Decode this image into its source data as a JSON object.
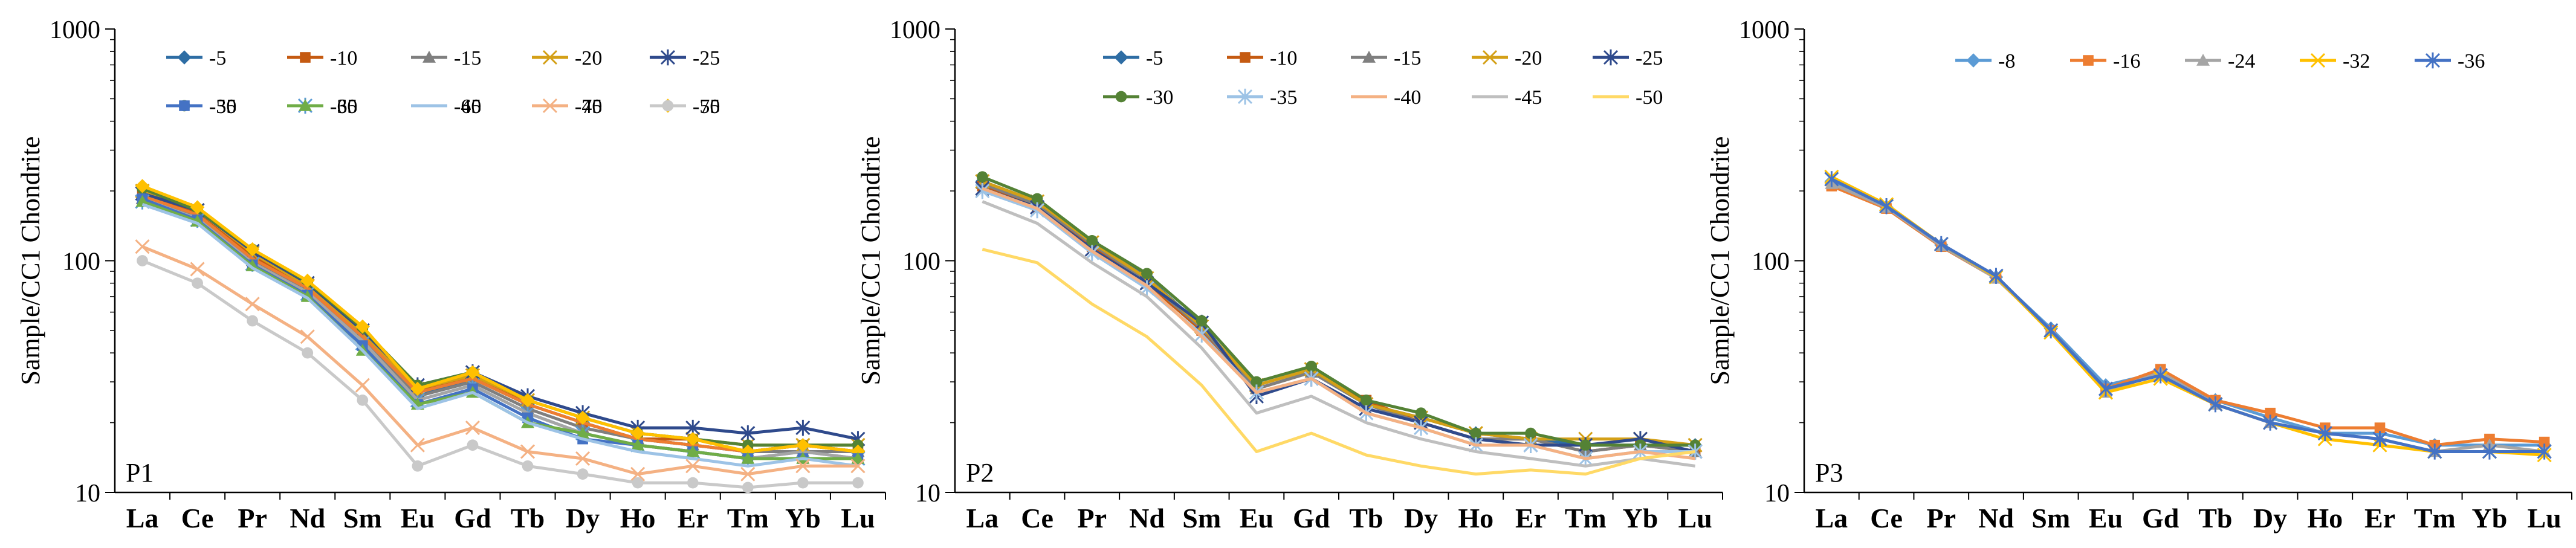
{
  "figure_title": "",
  "chart_data": [
    {
      "type": "line",
      "panel_label": "P1",
      "ylabel": "Sample/CC1 Chondrite",
      "xlabel": "",
      "y_scale": "log",
      "ylim": [
        10,
        1000
      ],
      "y_ticks": [
        "10",
        "100",
        "1000"
      ],
      "categories": [
        "La",
        "Ce",
        "Pr",
        "Nd",
        "Sm",
        "Eu",
        "Gd",
        "Tb",
        "Dy",
        "Ho",
        "Er",
        "Tm",
        "Yb",
        "Lu"
      ],
      "legend_position": "top",
      "grid": false,
      "series": [
        {
          "name": "-5",
          "color": "#2e6da4",
          "marker": "diamond",
          "values": [
            190,
            155,
            100,
            75,
            47,
            26,
            31,
            24,
            20,
            17,
            16,
            15,
            16,
            15
          ]
        },
        {
          "name": "-10",
          "color": "#c55a11",
          "marker": "square",
          "values": [
            195,
            160,
            105,
            77,
            48,
            27,
            32,
            24,
            20,
            17,
            17,
            15,
            16,
            15
          ]
        },
        {
          "name": "-15",
          "color": "#7f7f7f",
          "marker": "triangle",
          "values": [
            185,
            155,
            100,
            74,
            46,
            26,
            30,
            23,
            19,
            17,
            16,
            15,
            15,
            15
          ]
        },
        {
          "name": "-20",
          "color": "#d4a017",
          "marker": "x",
          "values": [
            200,
            165,
            108,
            78,
            49,
            28,
            32,
            25,
            21,
            18,
            17,
            16,
            16,
            16
          ]
        },
        {
          "name": "-25",
          "color": "#2f4a8c",
          "marker": "star",
          "values": [
            195,
            165,
            110,
            80,
            50,
            29,
            33,
            26,
            22,
            19,
            19,
            18,
            19,
            17
          ]
        },
        {
          "name": "-30",
          "color": "#548235",
          "marker": "circle",
          "values": [
            205,
            165,
            112,
            81,
            51,
            29,
            33,
            25,
            21,
            18,
            17,
            16,
            16,
            16
          ]
        },
        {
          "name": "-35",
          "color": "#5b9bd5",
          "marker": "star",
          "values": [
            180,
            150,
            97,
            72,
            44,
            25,
            29,
            22,
            18,
            16,
            15,
            14,
            15,
            14
          ]
        },
        {
          "name": "-40",
          "color": "#ed7d31",
          "marker": "none",
          "values": [
            190,
            158,
            102,
            76,
            47,
            27,
            31,
            24,
            20,
            17,
            16,
            15,
            16,
            15
          ]
        },
        {
          "name": "-45",
          "color": "#a5a5a5",
          "marker": "none",
          "values": [
            185,
            152,
            98,
            73,
            45,
            25,
            29,
            22,
            18,
            16,
            15,
            14,
            15,
            14
          ]
        },
        {
          "name": "-50",
          "color": "#ffc000",
          "marker": "diamond",
          "values": [
            210,
            170,
            112,
            82,
            52,
            28,
            33,
            25,
            21,
            18,
            17,
            15,
            16,
            15
          ]
        },
        {
          "name": "-55",
          "color": "#4472c4",
          "marker": "square",
          "values": [
            185,
            150,
            96,
            71,
            43,
            24,
            28,
            21,
            17,
            16,
            15,
            14,
            14,
            14
          ]
        },
        {
          "name": "-60",
          "color": "#70ad47",
          "marker": "triangle",
          "values": [
            180,
            148,
            95,
            70,
            41,
            24,
            27,
            20,
            18,
            16,
            15,
            14,
            14,
            14
          ]
        },
        {
          "name": "-65",
          "color": "#9dc3e6",
          "marker": "none",
          "values": [
            175,
            145,
            93,
            69,
            41,
            23,
            27,
            20,
            17,
            15,
            14,
            13,
            14,
            13
          ]
        },
        {
          "name": "-70",
          "color": "#f4b183",
          "marker": "x",
          "values": [
            115,
            92,
            65,
            47,
            29,
            16,
            19,
            15,
            14,
            12,
            13,
            12,
            13,
            13
          ]
        },
        {
          "name": "-75",
          "color": "#c9c9c9",
          "marker": "circle",
          "values": [
            100,
            80,
            55,
            40,
            25,
            13,
            16,
            13,
            12,
            11,
            11,
            10.5,
            11,
            11
          ]
        }
      ]
    },
    {
      "type": "line",
      "panel_label": "P2",
      "ylabel": "Sample/CC1 Chondrite",
      "xlabel": "",
      "y_scale": "log",
      "ylim": [
        10,
        1000
      ],
      "y_ticks": [
        "10",
        "100",
        "1000"
      ],
      "categories": [
        "La",
        "Ce",
        "Pr",
        "Nd",
        "Sm",
        "Eu",
        "Gd",
        "Tb",
        "Dy",
        "Ho",
        "Er",
        "Tm",
        "Yb",
        "Lu"
      ],
      "legend_position": "top",
      "grid": false,
      "series": [
        {
          "name": "-5",
          "color": "#2e6da4",
          "marker": "diamond",
          "values": [
            220,
            180,
            120,
            85,
            52,
            29,
            34,
            24,
            21,
            18,
            17,
            16,
            16,
            16
          ]
        },
        {
          "name": "-10",
          "color": "#c55a11",
          "marker": "square",
          "values": [
            210,
            170,
            115,
            80,
            50,
            28,
            33,
            25,
            20,
            17,
            17,
            15,
            16,
            15
          ]
        },
        {
          "name": "-15",
          "color": "#7f7f7f",
          "marker": "triangle",
          "values": [
            215,
            175,
            118,
            82,
            51,
            28,
            33,
            24,
            20,
            17,
            17,
            15,
            16,
            15
          ]
        },
        {
          "name": "-20",
          "color": "#d4a017",
          "marker": "x",
          "values": [
            220,
            180,
            120,
            84,
            52,
            29,
            34,
            24,
            21,
            18,
            17,
            17,
            17,
            16
          ]
        },
        {
          "name": "-25",
          "color": "#2f4a8c",
          "marker": "star",
          "values": [
            205,
            170,
            112,
            80,
            54,
            26,
            31,
            23,
            20,
            17,
            16,
            16,
            17,
            15
          ]
        },
        {
          "name": "-30",
          "color": "#548235",
          "marker": "circle",
          "values": [
            230,
            185,
            122,
            88,
            55,
            30,
            35,
            25,
            22,
            18,
            18,
            16,
            16,
            16
          ]
        },
        {
          "name": "-35",
          "color": "#9dc3e6",
          "marker": "star",
          "values": [
            200,
            165,
            108,
            76,
            48,
            27,
            31,
            22,
            19,
            16,
            16,
            14,
            15,
            15
          ]
        },
        {
          "name": "-40",
          "color": "#f4b183",
          "marker": "none",
          "values": [
            205,
            168,
            110,
            78,
            47,
            27,
            31,
            22,
            19,
            16,
            16,
            14,
            15,
            14
          ]
        },
        {
          "name": "-45",
          "color": "#bfbfbf",
          "marker": "none",
          "values": [
            180,
            145,
            98,
            70,
            42,
            22,
            26,
            20,
            17,
            15,
            14,
            13,
            14,
            13
          ]
        },
        {
          "name": "-50",
          "color": "#ffd966",
          "marker": "none",
          "values": [
            112,
            98,
            65,
            47,
            29,
            15,
            18,
            14.5,
            13,
            12,
            12.5,
            12,
            14,
            15
          ]
        }
      ]
    },
    {
      "type": "line",
      "panel_label": "P3",
      "ylabel": "Sample/CC1 Chondrite",
      "xlabel": "",
      "y_scale": "log",
      "ylim": [
        10,
        1000
      ],
      "y_ticks": [
        "10",
        "100",
        "1000"
      ],
      "categories": [
        "La",
        "Ce",
        "Pr",
        "Nd",
        "Sm",
        "Eu",
        "Gd",
        "Tb",
        "Dy",
        "Ho",
        "Er",
        "Tm",
        "Yb",
        "Lu"
      ],
      "legend_position": "top",
      "grid": false,
      "series": [
        {
          "name": "-8",
          "color": "#5b9bd5",
          "marker": "diamond",
          "values": [
            220,
            170,
            117,
            85,
            51,
            29,
            33,
            25,
            21,
            18,
            18,
            16,
            16,
            16
          ]
        },
        {
          "name": "-16",
          "color": "#ed7d31",
          "marker": "square",
          "values": [
            210,
            168,
            115,
            84,
            50,
            28,
            34,
            25,
            22,
            19,
            19,
            16,
            17,
            16.5
          ]
        },
        {
          "name": "-24",
          "color": "#a5a5a5",
          "marker": "triangle",
          "values": [
            215,
            170,
            116,
            84,
            50,
            27,
            33,
            24,
            20,
            18,
            17,
            15,
            16,
            15
          ]
        },
        {
          "name": "-32",
          "color": "#ffc000",
          "marker": "x",
          "values": [
            230,
            175,
            118,
            85,
            49,
            27,
            31,
            24,
            20,
            17,
            16,
            15,
            15,
            14.5
          ]
        },
        {
          "name": "-36",
          "color": "#4472c4",
          "marker": "star",
          "values": [
            225,
            172,
            118,
            86,
            50,
            28,
            32,
            24,
            20,
            18,
            17,
            15,
            15,
            15
          ]
        }
      ]
    }
  ]
}
